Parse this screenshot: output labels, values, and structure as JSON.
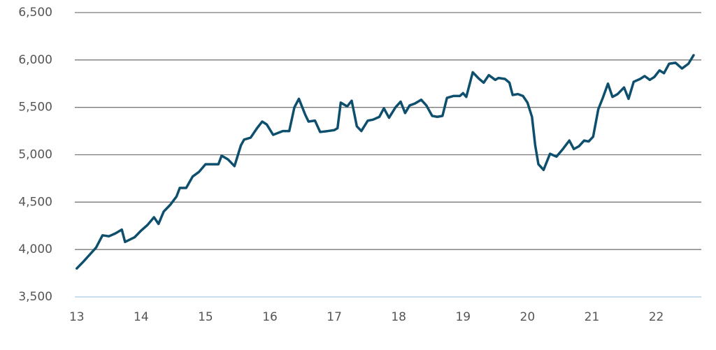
{
  "chart_data": {
    "type": "line",
    "color": "#0d4f6c",
    "grid": true,
    "xlim": [
      12.97,
      22.7
    ],
    "xticks": [
      13,
      14,
      15,
      16,
      17,
      18,
      19,
      20,
      21,
      22
    ],
    "ylim": [
      3500,
      6500
    ],
    "yticks": [
      {
        "value": 3500,
        "label": "3,500"
      },
      {
        "value": 4000,
        "label": "4,000"
      },
      {
        "value": 4500,
        "label": "4,500"
      },
      {
        "value": 5000,
        "label": "5,000"
      },
      {
        "value": 5500,
        "label": "5,500"
      },
      {
        "value": 6000,
        "label": "6,000"
      },
      {
        "value": 6500,
        "label": "6,500"
      }
    ],
    "x": [
      13.0,
      13.1,
      13.3,
      13.4,
      13.5,
      13.6,
      13.7,
      13.75,
      13.9,
      14.0,
      14.1,
      14.2,
      14.27,
      14.35,
      14.45,
      14.55,
      14.6,
      14.7,
      14.8,
      14.9,
      15.0,
      15.1,
      15.2,
      15.25,
      15.35,
      15.45,
      15.55,
      15.6,
      15.7,
      15.8,
      15.88,
      15.95,
      16.05,
      16.2,
      16.3,
      16.38,
      16.45,
      16.55,
      16.6,
      16.7,
      16.78,
      16.9,
      17.0,
      17.05,
      17.1,
      17.2,
      17.27,
      17.35,
      17.42,
      17.52,
      17.6,
      17.7,
      17.77,
      17.85,
      17.95,
      18.03,
      18.1,
      18.17,
      18.25,
      18.35,
      18.43,
      18.52,
      18.6,
      18.68,
      18.75,
      18.85,
      18.95,
      19.0,
      19.05,
      19.15,
      19.25,
      19.32,
      19.4,
      19.5,
      19.55,
      19.65,
      19.72,
      19.77,
      19.85,
      19.93,
      20.0,
      20.07,
      20.12,
      20.17,
      20.25,
      20.35,
      20.45,
      20.55,
      20.65,
      20.72,
      20.8,
      20.88,
      20.95,
      21.02,
      21.1,
      21.17,
      21.25,
      21.32,
      21.4,
      21.5,
      21.57,
      21.65,
      21.75,
      21.82,
      21.9,
      21.97,
      22.05,
      22.12,
      22.2,
      22.3,
      22.4,
      22.5,
      22.58
    ],
    "values": [
      3800,
      3870,
      4020,
      4150,
      4140,
      4170,
      4210,
      4080,
      4130,
      4200,
      4260,
      4340,
      4270,
      4400,
      4470,
      4560,
      4650,
      4650,
      4770,
      4820,
      4900,
      4900,
      4900,
      4990,
      4950,
      4880,
      5100,
      5160,
      5180,
      5280,
      5350,
      5320,
      5210,
      5250,
      5250,
      5500,
      5590,
      5420,
      5350,
      5360,
      5240,
      5250,
      5260,
      5280,
      5550,
      5510,
      5570,
      5300,
      5250,
      5360,
      5370,
      5400,
      5490,
      5390,
      5500,
      5560,
      5440,
      5520,
      5540,
      5580,
      5520,
      5410,
      5400,
      5410,
      5600,
      5620,
      5620,
      5650,
      5610,
      5870,
      5800,
      5760,
      5840,
      5790,
      5810,
      5800,
      5760,
      5630,
      5640,
      5620,
      5550,
      5400,
      5100,
      4900,
      4840,
      5010,
      4980,
      5060,
      5150,
      5060,
      5090,
      5150,
      5140,
      5190,
      5480,
      5600,
      5750,
      5610,
      5640,
      5710,
      5590,
      5770,
      5800,
      5830,
      5790,
      5820,
      5890,
      5860,
      5960,
      5970,
      5910,
      5960,
      6050
    ]
  }
}
